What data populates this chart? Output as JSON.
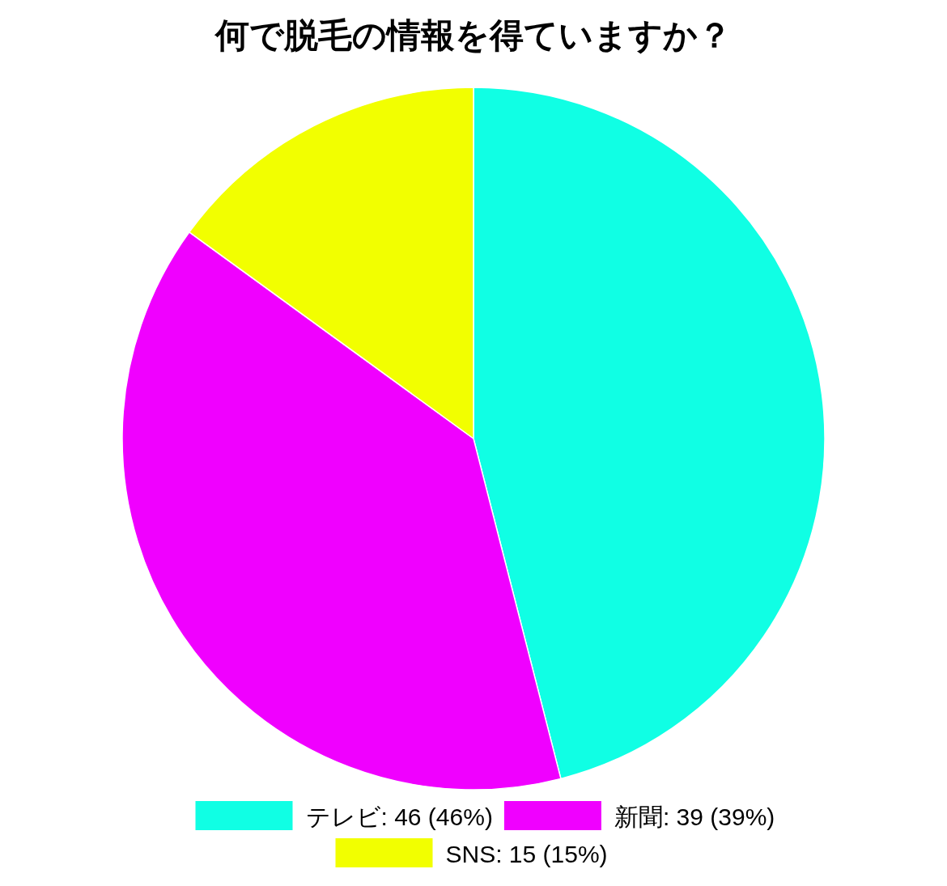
{
  "chart_data": {
    "type": "pie",
    "title": "何で脱毛の情報を得ていますか？",
    "categories": [
      "テレビ: 46 (46%)",
      "新聞: 39 (39%)",
      "SNS: 15 (15%)"
    ],
    "values": [
      46,
      39,
      15
    ],
    "colors": [
      "#10ffe4",
      "#f000ff",
      "#f2ff00"
    ],
    "legend": "bottom"
  }
}
